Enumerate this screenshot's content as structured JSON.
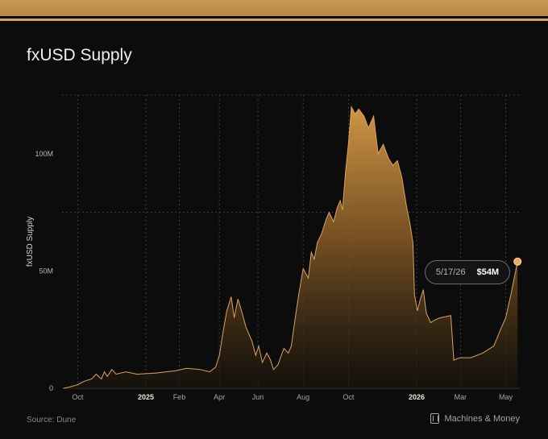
{
  "title": "fxUSD Supply",
  "source": "Source: Dune",
  "brand": "Machines & Money",
  "tooltip": {
    "date": "5/17/26",
    "value": "$54M"
  },
  "colors": {
    "accent": "#d3a45a",
    "background": "#0c0c0c",
    "point": "#f0a85e"
  },
  "chart_data": {
    "type": "area",
    "title": "fxUSD Supply",
    "xlabel": "",
    "ylabel": "fxUSD Supply",
    "xlim": [
      "2024-09-10",
      "2026-05-20"
    ],
    "ylim": [
      0,
      125
    ],
    "grid": "dashed vertical at month ticks and horizontal at 75M and 125M",
    "legend": "none",
    "y_ticks": [
      {
        "value": 0,
        "label": "0"
      },
      {
        "value": 50,
        "label": "50M"
      },
      {
        "value": 100,
        "label": "100M"
      }
    ],
    "x_ticks": [
      {
        "date": "2024-10-01",
        "label": "Oct"
      },
      {
        "date": "2025-01-01",
        "label": "2025"
      },
      {
        "date": "2025-02-15",
        "label": "Feb"
      },
      {
        "date": "2025-04-10",
        "label": "Apr"
      },
      {
        "date": "2025-06-01",
        "label": "Jun"
      },
      {
        "date": "2025-08-01",
        "label": "Aug"
      },
      {
        "date": "2025-10-01",
        "label": "Oct"
      },
      {
        "date": "2026-01-01",
        "label": "2026"
      },
      {
        "date": "2026-03-01",
        "label": "Mar"
      },
      {
        "date": "2026-05-01",
        "label": "May"
      }
    ],
    "series": [
      {
        "values_unit": "M",
        "points": [
          [
            "2024-09-12",
            0
          ],
          [
            "2024-09-20",
            0.5
          ],
          [
            "2024-10-01",
            1.5
          ],
          [
            "2024-10-10",
            3
          ],
          [
            "2024-10-20",
            4
          ],
          [
            "2024-10-26",
            6
          ],
          [
            "2024-11-02",
            4
          ],
          [
            "2024-11-06",
            7
          ],
          [
            "2024-11-10",
            5
          ],
          [
            "2024-11-16",
            8
          ],
          [
            "2024-11-22",
            6
          ],
          [
            "2024-12-05",
            7
          ],
          [
            "2024-12-20",
            6
          ],
          [
            "2025-01-15",
            6.5
          ],
          [
            "2025-02-10",
            7.5
          ],
          [
            "2025-02-25",
            8.5
          ],
          [
            "2025-03-15",
            8
          ],
          [
            "2025-03-28",
            7
          ],
          [
            "2025-04-05",
            9
          ],
          [
            "2025-04-10",
            14
          ],
          [
            "2025-04-15",
            24
          ],
          [
            "2025-04-20",
            33
          ],
          [
            "2025-04-26",
            39
          ],
          [
            "2025-04-30",
            30
          ],
          [
            "2025-05-05",
            38
          ],
          [
            "2025-05-09",
            34
          ],
          [
            "2025-05-16",
            26
          ],
          [
            "2025-05-24",
            20
          ],
          [
            "2025-05-29",
            14
          ],
          [
            "2025-06-02",
            18
          ],
          [
            "2025-06-07",
            11
          ],
          [
            "2025-06-13",
            15
          ],
          [
            "2025-06-18",
            12
          ],
          [
            "2025-06-22",
            8
          ],
          [
            "2025-06-28",
            10
          ],
          [
            "2025-07-06",
            17
          ],
          [
            "2025-07-12",
            15
          ],
          [
            "2025-07-16",
            18
          ],
          [
            "2025-07-20",
            27
          ],
          [
            "2025-07-26",
            40
          ],
          [
            "2025-08-01",
            51
          ],
          [
            "2025-08-08",
            47
          ],
          [
            "2025-08-12",
            58
          ],
          [
            "2025-08-16",
            55
          ],
          [
            "2025-08-20",
            62
          ],
          [
            "2025-08-26",
            66
          ],
          [
            "2025-09-01",
            72
          ],
          [
            "2025-09-05",
            75
          ],
          [
            "2025-09-11",
            71
          ],
          [
            "2025-09-16",
            77
          ],
          [
            "2025-09-20",
            80
          ],
          [
            "2025-09-23",
            76
          ],
          [
            "2025-09-27",
            92
          ],
          [
            "2025-10-01",
            104
          ],
          [
            "2025-10-05",
            120
          ],
          [
            "2025-10-10",
            117
          ],
          [
            "2025-10-15",
            119
          ],
          [
            "2025-10-22",
            116
          ],
          [
            "2025-10-28",
            111
          ],
          [
            "2025-11-04",
            116
          ],
          [
            "2025-11-10",
            100
          ],
          [
            "2025-11-17",
            104
          ],
          [
            "2025-11-24",
            98
          ],
          [
            "2025-11-30",
            95
          ],
          [
            "2025-12-06",
            97
          ],
          [
            "2025-12-12",
            90
          ],
          [
            "2025-12-18",
            78
          ],
          [
            "2025-12-23",
            70
          ],
          [
            "2025-12-27",
            62
          ],
          [
            "2025-12-29",
            40
          ],
          [
            "2026-01-02",
            33
          ],
          [
            "2026-01-06",
            38
          ],
          [
            "2026-01-10",
            42
          ],
          [
            "2026-01-14",
            32
          ],
          [
            "2026-01-20",
            28
          ],
          [
            "2026-01-25",
            29
          ],
          [
            "2026-02-01",
            30
          ],
          [
            "2026-02-16",
            31
          ],
          [
            "2026-02-20",
            12
          ],
          [
            "2026-02-28",
            13
          ],
          [
            "2026-03-15",
            13
          ],
          [
            "2026-03-31",
            15
          ],
          [
            "2026-04-15",
            18
          ],
          [
            "2026-04-24",
            25
          ],
          [
            "2026-05-01",
            30
          ],
          [
            "2026-05-08",
            40
          ],
          [
            "2026-05-17",
            54
          ]
        ]
      }
    ],
    "annotation": {
      "date": "2026-05-17",
      "value": 54,
      "label": "$54M"
    }
  }
}
